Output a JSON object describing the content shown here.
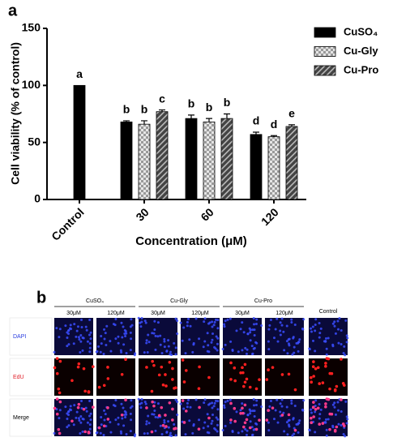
{
  "chart_data": {
    "type": "bar",
    "panel": "a",
    "y_label": "Cell viability (% of control)",
    "x_label": "Concentration (μM)",
    "categories": [
      "Control",
      "30",
      "60",
      "120"
    ],
    "series": [
      {
        "name": "CuSO₄",
        "color": "#000000",
        "pattern": "solid",
        "values": [
          100,
          68,
          71,
          57
        ],
        "errors": [
          null,
          1,
          3,
          2
        ],
        "letters": [
          "a",
          "b",
          "b",
          "d"
        ]
      },
      {
        "name": "Cu-Gly",
        "color": "#9a9a9a",
        "pattern": "checker",
        "values": [
          null,
          66,
          68,
          55
        ],
        "errors": [
          null,
          3,
          3,
          1
        ],
        "letters": [
          null,
          "b",
          "b",
          "d"
        ]
      },
      {
        "name": "Cu-Pro",
        "color": "#444444",
        "pattern": "hatch",
        "values": [
          null,
          77,
          71,
          64
        ],
        "errors": [
          null,
          1.5,
          4,
          1.5
        ],
        "letters": [
          null,
          "c",
          "b",
          "e"
        ]
      }
    ],
    "ylim": [
      0,
      150
    ],
    "yticks": [
      0,
      50,
      100,
      150
    ],
    "grid": false,
    "legend": "top-right"
  },
  "panel_b": {
    "label": "b",
    "groups": [
      {
        "name": "CuSO₄",
        "subs": [
          "30μM",
          "120μM"
        ]
      },
      {
        "name": "Cu-Gly",
        "subs": [
          "30μM",
          "120μM"
        ]
      },
      {
        "name": "Cu-Pro",
        "subs": [
          "30μM",
          "120μM"
        ]
      }
    ],
    "control": "Control",
    "rows": [
      "DAPI",
      "EdU",
      "Merge"
    ]
  }
}
